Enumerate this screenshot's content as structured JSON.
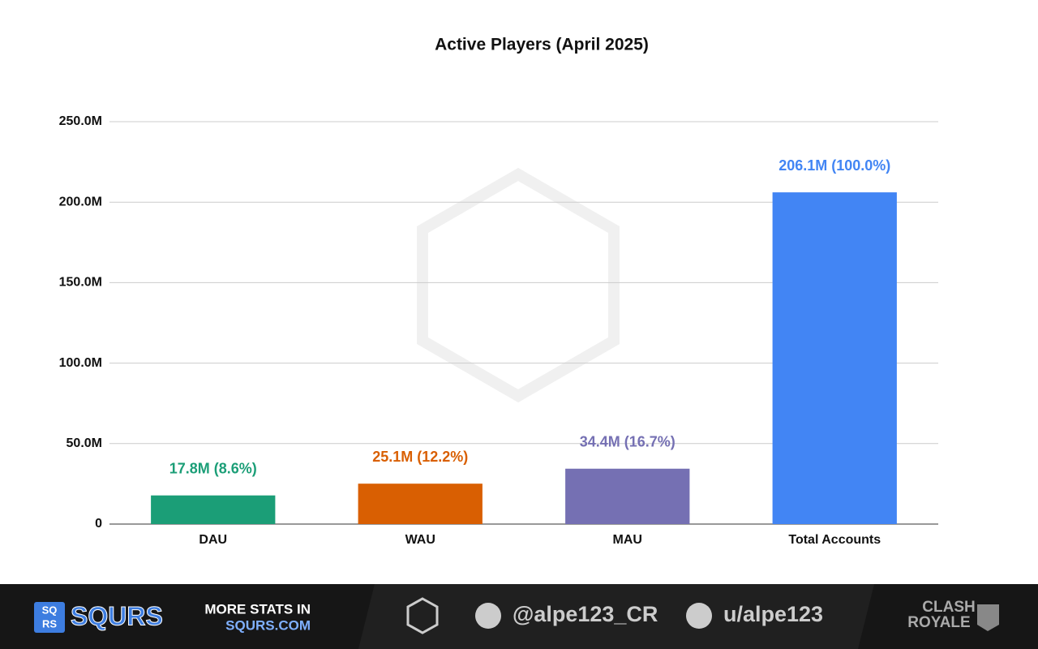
{
  "chart_data": {
    "type": "bar",
    "title": "Active Players (April 2025)",
    "categories": [
      "DAU",
      "WAU",
      "MAU",
      "Total Accounts"
    ],
    "values": [
      17800000,
      25100000,
      34400000,
      206100000
    ],
    "value_labels": [
      "17.8M (8.6%)",
      "25.1M (12.2%)",
      "34.4M (16.7%)",
      "206.1M (100.0%)"
    ],
    "colors": [
      "#1b9e77",
      "#d95f02",
      "#7570b3",
      "#4285f4"
    ],
    "ylim": [
      0,
      250000000
    ],
    "yticks": [
      0,
      {
        "value": 50000000,
        "label": "50.0M"
      },
      {
        "value": 100000000,
        "label": "100.0M"
      },
      {
        "value": 150000000,
        "label": "150.0M"
      },
      {
        "value": 200000000,
        "label": "200.0M"
      },
      {
        "value": 250000000,
        "label": "250.0M"
      }
    ],
    "grid": true
  },
  "footer": {
    "brand": "SQURS",
    "logo_top": "SQ",
    "logo_bottom": "RS",
    "promo_line1": "MORE STATS IN",
    "promo_line2": "SQURS.COM",
    "twitter": "@alpe123_CR",
    "reddit": "u/alpe123",
    "game_line1": "CLASH",
    "game_line2": "ROYALE"
  }
}
